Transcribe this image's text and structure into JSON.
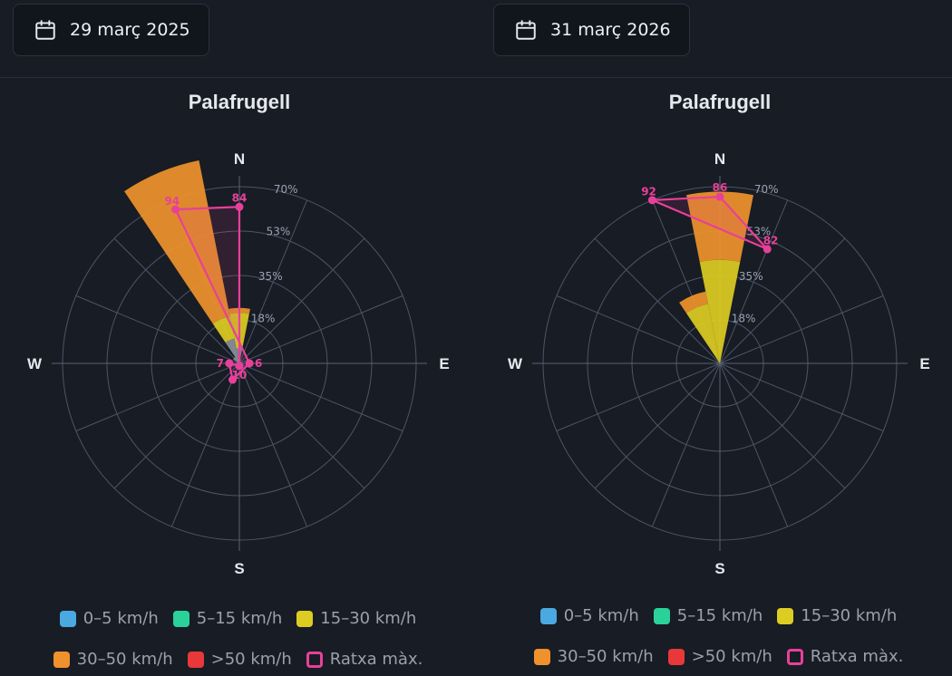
{
  "date_pickers": [
    {
      "label": "29 març 2025"
    },
    {
      "label": "31 març 2026"
    }
  ],
  "legend": [
    {
      "label": "0–5 km/h",
      "color": "#4aa9e0",
      "style": "fill"
    },
    {
      "label": "5–15 km/h",
      "color": "#2ad29a",
      "style": "fill"
    },
    {
      "label": "15–30 km/h",
      "color": "#ddcc22",
      "style": "fill"
    },
    {
      "label": "30–50 km/h",
      "color": "#f0922c",
      "style": "fill"
    },
    {
      "label": ">50 km/h",
      "color": "#e8383a",
      "style": "fill"
    },
    {
      "label": "Ratxa màx.",
      "color": "#e8409a",
      "style": "outline"
    }
  ],
  "chart_data": [
    {
      "type": "polar-bar",
      "title": "Palafrugell",
      "direction_labels": {
        "N": "N",
        "E": "E",
        "S": "S",
        "W": "W"
      },
      "radial_max": 70,
      "radial_ticks": [
        18,
        35,
        53,
        70
      ],
      "radial_tick_labels": [
        "18%",
        "35%",
        "53%",
        "70%"
      ],
      "sector_width_deg": 22.5,
      "stacks": [
        {
          "direction_deg": 0,
          "segments": [
            {
              "band": "0–5 km/h",
              "value": 6
            },
            {
              "band": "15–30 km/h",
              "value": 14
            },
            {
              "band": "30–50 km/h",
              "value": 2
            }
          ]
        },
        {
          "direction_deg": 337.5,
          "segments": [
            {
              "band": "0–5 km/h",
              "value": 10
            },
            {
              "band": "15–30 km/h",
              "value": 9
            },
            {
              "band": "30–50 km/h",
              "value": 63
            }
          ]
        },
        {
          "direction_deg": 315,
          "segments": [
            {
              "band": "0–5 km/h",
              "value": 3
            }
          ]
        }
      ],
      "gust_series": {
        "name": "Ratxa màx.",
        "points": [
          {
            "direction_deg": 0,
            "value": 62,
            "label": "84"
          },
          {
            "direction_deg": 337.5,
            "value": 66,
            "label": "94"
          },
          {
            "direction_deg": 90,
            "value": 4,
            "label": "6"
          },
          {
            "direction_deg": 202.5,
            "value": 7,
            "label": ""
          },
          {
            "direction_deg": 270,
            "value": 4,
            "label": "7"
          },
          {
            "direction_deg": 180,
            "value": 1,
            "label": "10"
          }
        ]
      }
    },
    {
      "type": "polar-bar",
      "title": "Palafrugell",
      "direction_labels": {
        "N": "N",
        "E": "E",
        "S": "S",
        "W": "W"
      },
      "radial_max": 70,
      "radial_ticks": [
        18,
        35,
        53,
        70
      ],
      "radial_tick_labels": [
        "18%",
        "35%",
        "53%",
        "70%"
      ],
      "sector_width_deg": 22.5,
      "stacks": [
        {
          "direction_deg": 0,
          "segments": [
            {
              "band": "15–30 km/h",
              "value": 41
            },
            {
              "band": "30–50 km/h",
              "value": 27
            }
          ]
        },
        {
          "direction_deg": 337.5,
          "segments": [
            {
              "band": "15–30 km/h",
              "value": 24
            },
            {
              "band": "30–50 km/h",
              "value": 5
            }
          ]
        }
      ],
      "gust_series": {
        "name": "Ratxa màx.",
        "points": [
          {
            "direction_deg": 0,
            "value": 66,
            "label": "86"
          },
          {
            "direction_deg": 22.5,
            "value": 49,
            "label": "82"
          },
          {
            "direction_deg": 337.5,
            "value": 70,
            "label": "92"
          }
        ]
      }
    }
  ]
}
